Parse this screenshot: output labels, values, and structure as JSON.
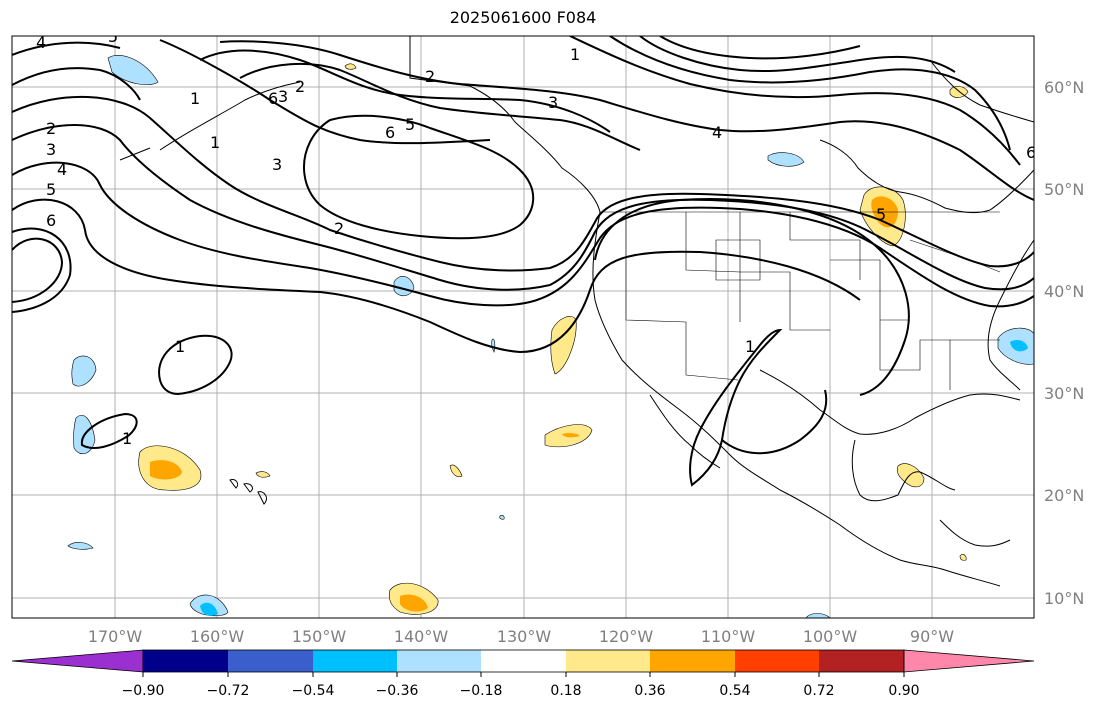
{
  "title": "2025061600 F084",
  "map": {
    "lon_labels": [
      "170°W",
      "160°W",
      "150°W",
      "140°W",
      "130°W",
      "120°W",
      "110°W",
      "100°W",
      "90°W"
    ],
    "lat_labels": [
      "60°N",
      "50°N",
      "40°N",
      "30°N",
      "20°N",
      "10°N"
    ],
    "contour_labels": [
      "1",
      "2",
      "3",
      "4",
      "5",
      "6",
      "2",
      "3",
      "4",
      "5",
      "6",
      "6",
      "5",
      "3",
      "2",
      "1",
      "1",
      "1",
      "2",
      "3",
      "1",
      "1",
      "4",
      "5",
      "6"
    ]
  },
  "colorbar": {
    "ticks": [
      "−0.90",
      "−0.72",
      "−0.54",
      "−0.36",
      "−0.18",
      "0.18",
      "0.36",
      "0.54",
      "0.72",
      "0.90"
    ],
    "colors": [
      "#9b30d0",
      "#00008b",
      "#3a5fcd",
      "#00bfff",
      "#aee0ff",
      "#ffffff",
      "#ffe98a",
      "#ffa500",
      "#ff4000",
      "#b22222",
      "#ff88aa"
    ]
  }
}
